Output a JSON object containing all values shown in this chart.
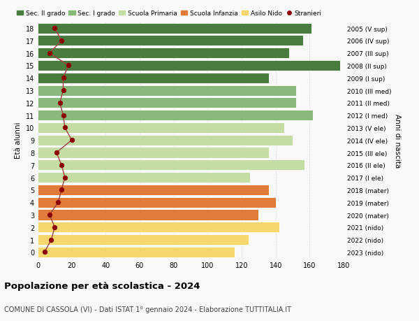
{
  "ages": [
    0,
    1,
    2,
    3,
    4,
    5,
    6,
    7,
    8,
    9,
    10,
    11,
    12,
    13,
    14,
    15,
    16,
    17,
    18
  ],
  "years": [
    "2023 (nido)",
    "2022 (nido)",
    "2021 (nido)",
    "2020 (mater)",
    "2019 (mater)",
    "2018 (mater)",
    "2017 (I ele)",
    "2016 (II ele)",
    "2015 (III ele)",
    "2014 (IV ele)",
    "2013 (V ele)",
    "2012 (I med)",
    "2011 (II med)",
    "2010 (III med)",
    "2009 (I sup)",
    "2008 (II sup)",
    "2007 (III sup)",
    "2006 (IV sup)",
    "2005 (V sup)"
  ],
  "bar_values": [
    116,
    124,
    142,
    130,
    140,
    136,
    125,
    157,
    136,
    150,
    145,
    162,
    152,
    152,
    136,
    178,
    148,
    156,
    161
  ],
  "stranieri": [
    4,
    8,
    10,
    7,
    12,
    14,
    16,
    14,
    11,
    20,
    16,
    15,
    13,
    15,
    15,
    18,
    7,
    14,
    10
  ],
  "bar_colors": {
    "nido": "#f5d76e",
    "mater": "#e07b39",
    "ele": "#c5dda4",
    "med": "#8ab87a",
    "sup": "#4a7c40"
  },
  "stranieri_color": "#8b0000",
  "stranieri_line_color": "#a04040",
  "xlim": [
    0,
    180
  ],
  "ylabel": "Età alunni",
  "right_ylabel": "Anni di nascita",
  "title": "Popolazione per età scolastica - 2024",
  "subtitle": "COMUNE DI CASSOLA (VI) - Dati ISTAT 1° gennaio 2024 - Elaborazione TUTTITALIA.IT",
  "xticks": [
    0,
    20,
    40,
    60,
    80,
    100,
    120,
    140,
    160,
    180
  ],
  "bg_color": "#f9f9f9",
  "grid_color": "#dddddd",
  "legend_labels": [
    "Sec. II grado",
    "Sec. I grado",
    "Scuola Primaria",
    "Scuola Infanzia",
    "Asilo Nido",
    "Stranieri"
  ],
  "legend_colors": [
    "#4a7c40",
    "#8ab87a",
    "#c5dda4",
    "#e07b39",
    "#f5d76e",
    "#8b0000"
  ]
}
